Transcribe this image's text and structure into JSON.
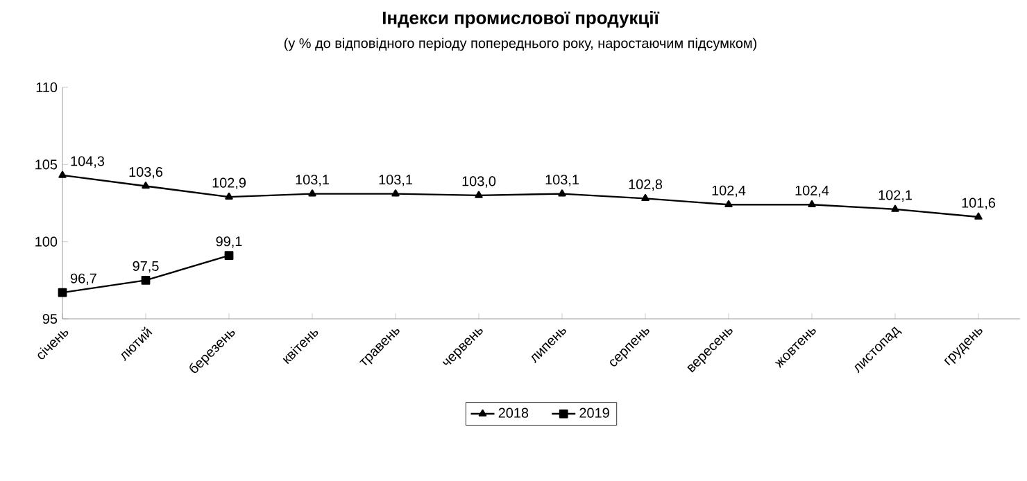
{
  "chart_data": {
    "type": "line",
    "title": "Індекси промислової продукції",
    "subtitle": "(у % до відповідного періоду попереднього року, наростаючим підсумком)",
    "categories": [
      "січень",
      "лютий",
      "березень",
      "квітень",
      "травень",
      "червень",
      "липень",
      "серпень",
      "вересень",
      "жовтень",
      "листопад",
      "грудень"
    ],
    "series": [
      {
        "name": "2018",
        "color": "#000000",
        "marker": "triangle",
        "values": [
          104.3,
          103.6,
          102.9,
          103.1,
          103.1,
          103.0,
          103.1,
          102.8,
          102.4,
          102.4,
          102.1,
          101.6
        ],
        "value_labels": [
          "104,3",
          "103,6",
          "102,9",
          "103,1",
          "103,1",
          "103,0",
          "103,1",
          "102,8",
          "102,4",
          "102,4",
          "102,1",
          "101,6"
        ]
      },
      {
        "name": "2019",
        "color": "#000000",
        "marker": "square",
        "values": [
          96.7,
          97.5,
          99.1,
          null,
          null,
          null,
          null,
          null,
          null,
          null,
          null,
          null
        ],
        "value_labels": [
          "96,7",
          "97,5",
          "99,1",
          null,
          null,
          null,
          null,
          null,
          null,
          null,
          null,
          null
        ]
      }
    ],
    "ylim": [
      95,
      110
    ],
    "yticks": [
      95,
      100,
      105,
      110
    ],
    "grid": false,
    "legend": "bottom",
    "line_style": "solid"
  }
}
